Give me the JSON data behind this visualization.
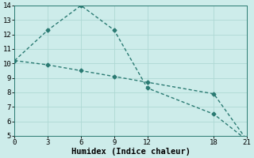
{
  "line1_x": [
    0,
    3,
    6,
    9,
    12,
    18,
    21
  ],
  "line1_y": [
    10.2,
    12.3,
    14.0,
    12.3,
    8.3,
    6.5,
    4.7
  ],
  "line2_x": [
    0,
    3,
    6,
    9,
    12,
    18,
    21
  ],
  "line2_y": [
    10.2,
    9.9,
    9.5,
    9.1,
    8.7,
    7.9,
    4.7
  ],
  "line_color": "#2a7a72",
  "marker": "D",
  "marker_size": 2.5,
  "line_width": 1.0,
  "background_color": "#cdecea",
  "grid_color": "#aed8d4",
  "xlabel": "Humidex (Indice chaleur)",
  "xlim": [
    0,
    21
  ],
  "ylim": [
    5,
    14
  ],
  "xticks": [
    0,
    3,
    6,
    9,
    12,
    18,
    21
  ],
  "yticks": [
    5,
    6,
    7,
    8,
    9,
    10,
    11,
    12,
    13,
    14
  ],
  "tick_fontsize": 6.5,
  "xlabel_fontsize": 7.5
}
